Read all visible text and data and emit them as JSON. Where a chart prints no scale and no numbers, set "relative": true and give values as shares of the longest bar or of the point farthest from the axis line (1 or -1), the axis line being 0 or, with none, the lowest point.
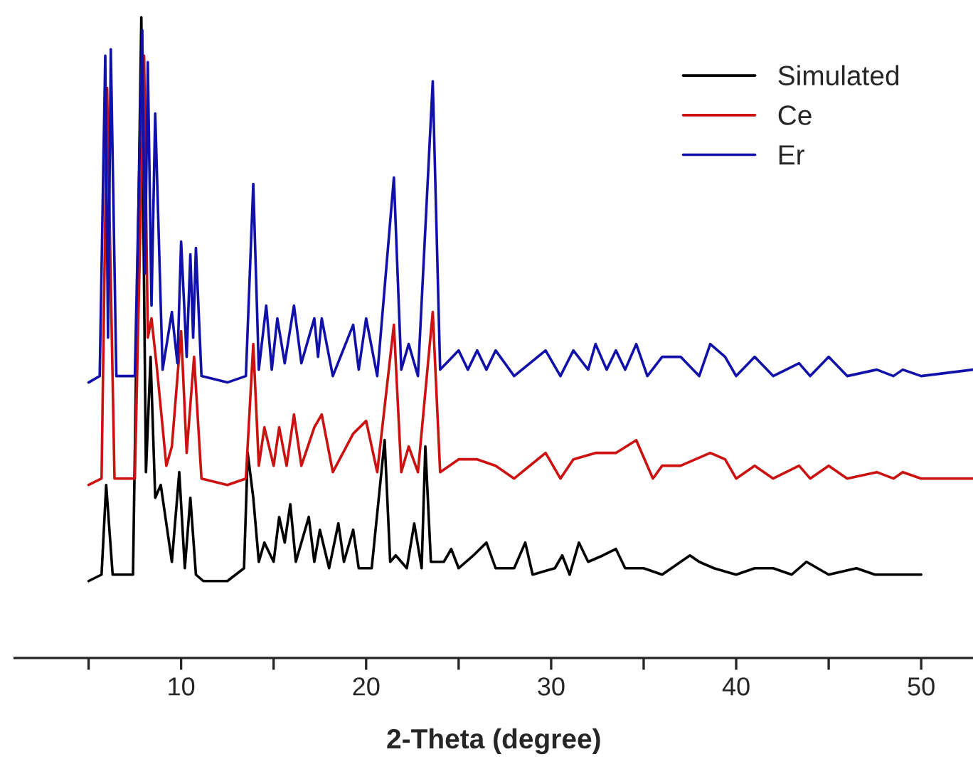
{
  "chart_data": {
    "type": "line",
    "relative": true,
    "xlabel": "2-Theta (degree)",
    "xlim": [
      1,
      52.8
    ],
    "xticks": [
      {
        "value": 5,
        "label": null
      },
      10,
      {
        "value": 15,
        "label": null
      },
      20,
      {
        "value": 25,
        "label": null
      },
      30,
      {
        "value": 35,
        "label": null
      },
      40,
      {
        "value": 45,
        "label": null
      },
      50
    ],
    "legend": "top right",
    "grid": false,
    "tick_labels": "x",
    "series": [
      {
        "name": "Simulated",
        "color": "#000000",
        "x": [
          5.0,
          5.7,
          5.95,
          6.3,
          7.4,
          7.85,
          8.1,
          8.35,
          8.6,
          8.9,
          9.2,
          9.5,
          9.9,
          10.2,
          10.5,
          10.8,
          11.2,
          12.5,
          13.4,
          13.6,
          13.9,
          14.2,
          14.5,
          15.0,
          15.3,
          15.6,
          15.9,
          16.2,
          16.5,
          16.9,
          17.2,
          17.5,
          18.0,
          18.5,
          18.8,
          19.3,
          19.6,
          20.3,
          21.0,
          21.3,
          21.6,
          22.2,
          22.6,
          23.0,
          23.2,
          23.5,
          24.2,
          24.6,
          25.0,
          25.8,
          26.5,
          27.0,
          28.0,
          28.6,
          29.0,
          30.2,
          30.6,
          31.0,
          31.5,
          32.0,
          32.8,
          33.5,
          34.0,
          35.0,
          36.0,
          37.5,
          38.0,
          38.8,
          40.0,
          41.0,
          42.0,
          43.0,
          43.8,
          45.0,
          46.5,
          47.5,
          48.0,
          49.5,
          50.0
        ],
        "values": [
          0.12,
          0.13,
          0.27,
          0.13,
          0.13,
          1.0,
          0.29,
          0.47,
          0.25,
          0.27,
          0.21,
          0.15,
          0.29,
          0.14,
          0.25,
          0.13,
          0.12,
          0.12,
          0.14,
          0.32,
          0.25,
          0.15,
          0.18,
          0.15,
          0.22,
          0.18,
          0.24,
          0.15,
          0.18,
          0.22,
          0.15,
          0.2,
          0.14,
          0.21,
          0.15,
          0.2,
          0.14,
          0.14,
          0.34,
          0.15,
          0.16,
          0.14,
          0.21,
          0.14,
          0.33,
          0.15,
          0.15,
          0.17,
          0.14,
          0.16,
          0.18,
          0.14,
          0.14,
          0.18,
          0.13,
          0.14,
          0.16,
          0.13,
          0.18,
          0.15,
          0.16,
          0.17,
          0.14,
          0.14,
          0.13,
          0.16,
          0.15,
          0.14,
          0.13,
          0.14,
          0.14,
          0.13,
          0.15,
          0.13,
          0.14,
          0.13,
          0.13,
          0.13,
          0.13
        ]
      },
      {
        "name": "Ce",
        "color": "#cc1111",
        "x": [
          5.0,
          5.7,
          6.0,
          6.4,
          7.5,
          8.0,
          8.2,
          8.4,
          8.7,
          9.2,
          9.5,
          10.0,
          10.3,
          10.7,
          11.1,
          12.5,
          13.5,
          13.9,
          14.2,
          14.5,
          15.0,
          15.3,
          15.7,
          16.1,
          16.5,
          17.2,
          17.6,
          18.2,
          19.3,
          20.0,
          20.6,
          21.5,
          21.9,
          22.3,
          22.8,
          23.6,
          24.0,
          25.0,
          26.0,
          27.0,
          28.0,
          29.7,
          30.5,
          31.2,
          32.4,
          33.5,
          34.6,
          35.5,
          36.0,
          37.0,
          38.6,
          39.4,
          40.0,
          41.0,
          42.0,
          43.4,
          44.0,
          45.0,
          46.0,
          47.6,
          48.5,
          49.0,
          50.0,
          52.8
        ],
        "values": [
          0.27,
          0.28,
          0.89,
          0.28,
          0.28,
          0.94,
          0.5,
          0.53,
          0.45,
          0.3,
          0.33,
          0.51,
          0.32,
          0.47,
          0.28,
          0.27,
          0.28,
          0.49,
          0.3,
          0.36,
          0.3,
          0.36,
          0.3,
          0.38,
          0.3,
          0.36,
          0.38,
          0.29,
          0.35,
          0.37,
          0.29,
          0.52,
          0.29,
          0.33,
          0.29,
          0.54,
          0.29,
          0.31,
          0.31,
          0.3,
          0.28,
          0.32,
          0.28,
          0.31,
          0.32,
          0.32,
          0.34,
          0.28,
          0.3,
          0.3,
          0.32,
          0.31,
          0.28,
          0.3,
          0.28,
          0.3,
          0.28,
          0.3,
          0.28,
          0.29,
          0.28,
          0.29,
          0.28,
          0.28
        ]
      },
      {
        "name": "Er",
        "color": "#1111aa",
        "x": [
          5.0,
          5.6,
          5.9,
          6.05,
          6.2,
          6.5,
          7.5,
          7.9,
          8.05,
          8.2,
          8.4,
          8.6,
          9.0,
          9.5,
          9.8,
          10.0,
          10.3,
          10.5,
          10.65,
          10.8,
          11.1,
          12.5,
          13.5,
          13.9,
          14.2,
          14.6,
          14.9,
          15.2,
          15.6,
          16.1,
          16.5,
          17.2,
          17.4,
          17.6,
          18.2,
          19.3,
          19.6,
          20.0,
          20.6,
          21.5,
          21.9,
          22.3,
          22.8,
          23.6,
          24.0,
          25.0,
          25.5,
          26.0,
          26.5,
          27.0,
          28.0,
          29.7,
          30.5,
          31.2,
          32.0,
          32.4,
          33.0,
          33.5,
          34.0,
          34.6,
          35.2,
          36.0,
          37.0,
          38.0,
          38.6,
          39.4,
          40.0,
          41.0,
          42.0,
          43.4,
          44.0,
          45.0,
          46.0,
          47.6,
          48.5,
          49.0,
          50.0,
          52.8
        ],
        "values": [
          0.43,
          0.44,
          0.94,
          0.5,
          0.95,
          0.44,
          0.44,
          0.98,
          0.6,
          0.93,
          0.55,
          0.85,
          0.45,
          0.54,
          0.46,
          0.65,
          0.47,
          0.63,
          0.5,
          0.64,
          0.44,
          0.43,
          0.44,
          0.74,
          0.45,
          0.55,
          0.45,
          0.53,
          0.46,
          0.55,
          0.46,
          0.53,
          0.47,
          0.53,
          0.44,
          0.52,
          0.45,
          0.53,
          0.44,
          0.75,
          0.45,
          0.49,
          0.44,
          0.9,
          0.45,
          0.48,
          0.45,
          0.48,
          0.45,
          0.48,
          0.44,
          0.48,
          0.44,
          0.48,
          0.45,
          0.49,
          0.45,
          0.48,
          0.45,
          0.49,
          0.44,
          0.47,
          0.47,
          0.44,
          0.49,
          0.47,
          0.44,
          0.47,
          0.44,
          0.46,
          0.44,
          0.47,
          0.44,
          0.45,
          0.44,
          0.45,
          0.44,
          0.45
        ]
      }
    ]
  }
}
